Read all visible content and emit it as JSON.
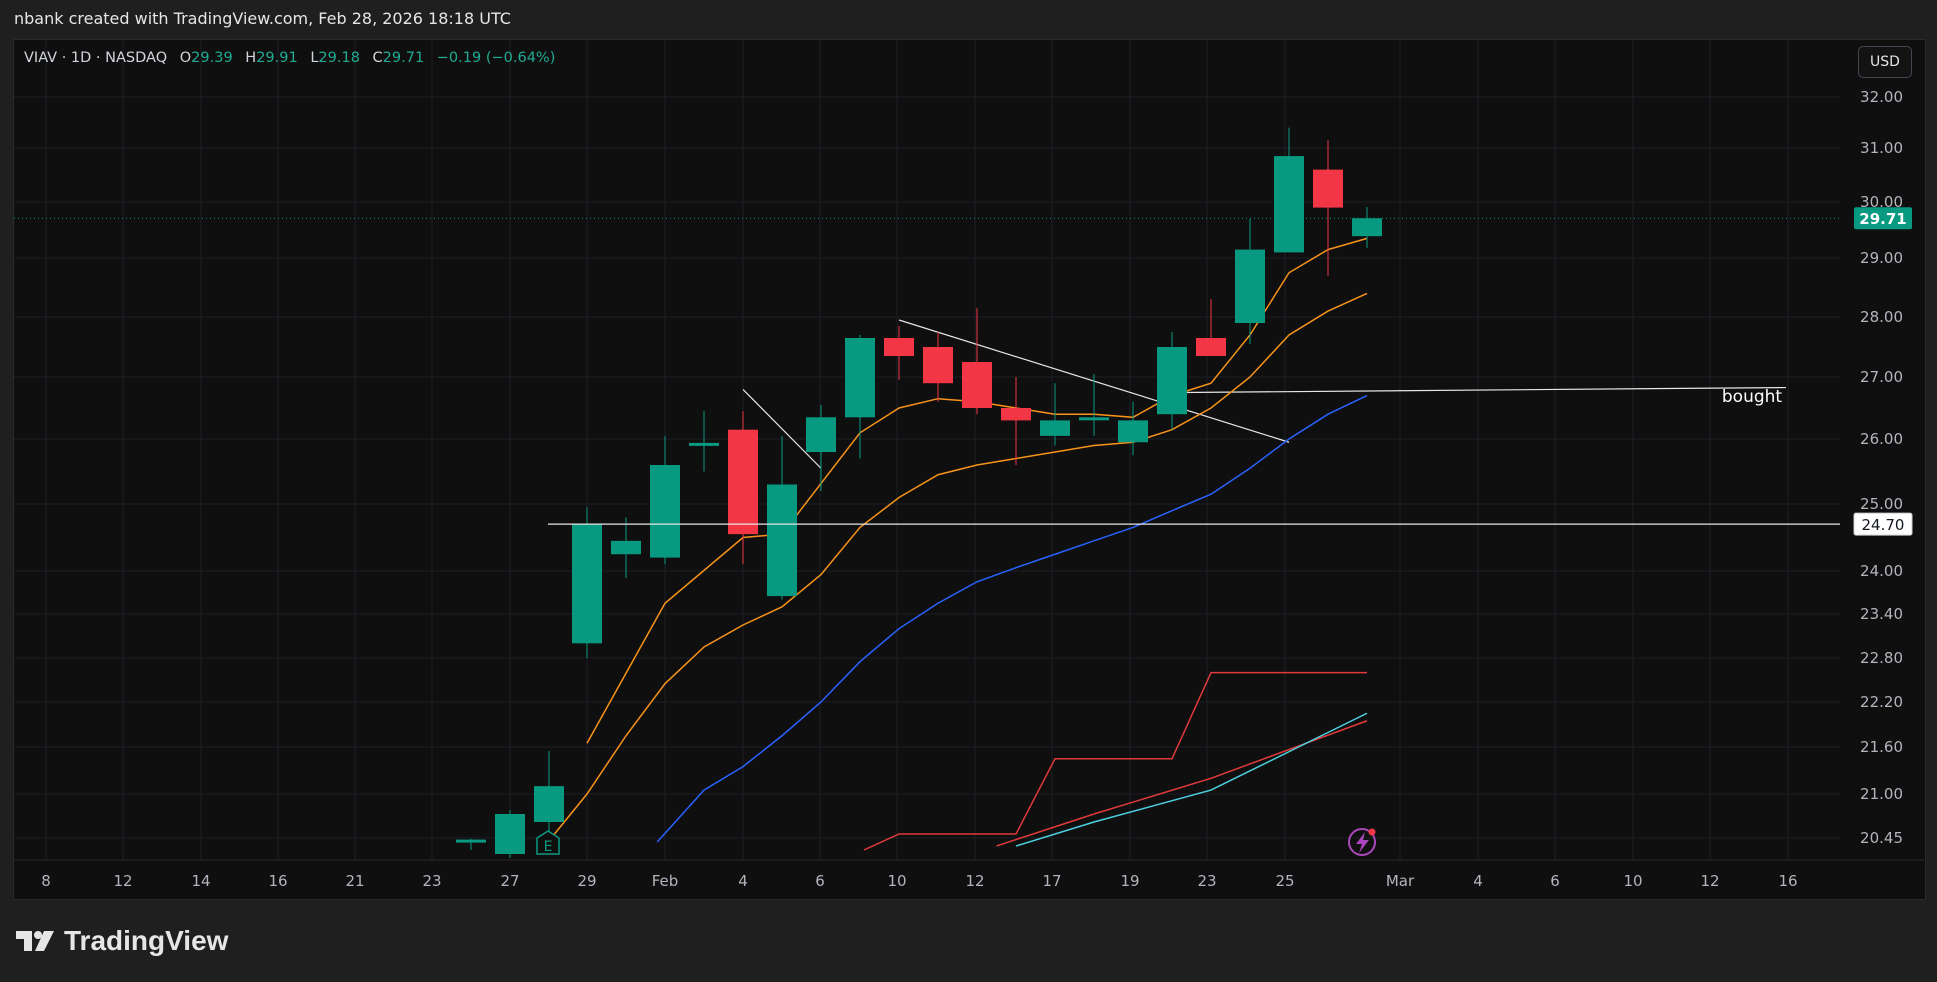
{
  "header": {
    "caption": "nbank created with TradingView.com, Feb 28, 2026 18:18 UTC"
  },
  "symbol": {
    "name": "VIAV · 1D · NASDAQ",
    "o_label": "O",
    "o_value": "29.39",
    "h_label": "H",
    "h_value": "29.91",
    "l_label": "L",
    "l_value": "29.18",
    "c_label": "C",
    "c_value": "29.71",
    "change": "−0.19 (−0.64%)"
  },
  "currency_button": "USD",
  "footer": {
    "brand": "TradingView"
  },
  "colors": {
    "up": "#089981",
    "down": "#f23645",
    "ema_fast": "#f7931a",
    "ema_blue": "#2962ff",
    "red_line": "#e03a3a",
    "cyan_line": "#4dd0e1",
    "white_line": "#e0e0e0"
  },
  "chart_data": {
    "type": "candlestick",
    "y_axis_ticks": [
      "32.00",
      "31.00",
      "30.00",
      "29.00",
      "28.00",
      "27.00",
      "26.00",
      "25.00",
      "24.00",
      "23.40",
      "22.80",
      "22.20",
      "21.60",
      "21.00",
      "20.45"
    ],
    "x_axis_ticks": [
      "8",
      "12",
      "14",
      "16",
      "21",
      "23",
      "27",
      "29",
      "Feb",
      "4",
      "6",
      "10",
      "12",
      "17",
      "19",
      "23",
      "25",
      "Mar",
      "4",
      "6",
      "10",
      "12",
      "16"
    ],
    "last_price": "29.71",
    "marked_level": "24.70",
    "annotation": "bought",
    "earnings_marker": "E",
    "candles": [
      {
        "date": "Jan 26",
        "o": 20.4,
        "h": 20.44,
        "l": 20.3,
        "c": 20.43
      },
      {
        "date": "Jan 27",
        "o": 20.25,
        "h": 20.8,
        "l": 20.2,
        "c": 20.75
      },
      {
        "date": "Jan 28",
        "o": 20.65,
        "h": 21.55,
        "l": 20.4,
        "c": 21.1
      },
      {
        "date": "Jan 29",
        "o": 23.0,
        "h": 24.95,
        "l": 22.8,
        "c": 24.7
      },
      {
        "date": "Jan 30",
        "o": 24.25,
        "h": 24.8,
        "l": 23.9,
        "c": 24.45
      },
      {
        "date": "Feb 2",
        "o": 24.2,
        "h": 26.05,
        "l": 24.1,
        "c": 25.6
      },
      {
        "date": "Feb 3",
        "o": 25.9,
        "h": 26.45,
        "l": 25.5,
        "c": 25.94
      },
      {
        "date": "Feb 4",
        "o": 26.15,
        "h": 26.45,
        "l": 24.1,
        "c": 24.55
      },
      {
        "date": "Feb 5",
        "o": 23.65,
        "h": 26.05,
        "l": 23.6,
        "c": 25.3
      },
      {
        "date": "Feb 6",
        "o": 25.8,
        "h": 26.55,
        "l": 25.2,
        "c": 26.35
      },
      {
        "date": "Feb 9",
        "o": 26.35,
        "h": 27.7,
        "l": 25.7,
        "c": 27.65
      },
      {
        "date": "Feb 10",
        "o": 27.65,
        "h": 27.85,
        "l": 26.95,
        "c": 27.35
      },
      {
        "date": "Feb 11",
        "o": 27.5,
        "h": 27.75,
        "l": 26.6,
        "c": 26.9
      },
      {
        "date": "Feb 12",
        "o": 27.25,
        "h": 28.15,
        "l": 26.4,
        "c": 26.5
      },
      {
        "date": "Feb 13",
        "o": 26.5,
        "h": 27.0,
        "l": 25.6,
        "c": 26.3
      },
      {
        "date": "Feb 17",
        "o": 26.05,
        "h": 26.9,
        "l": 25.9,
        "c": 26.3
      },
      {
        "date": "Feb 18",
        "o": 26.35,
        "h": 27.05,
        "l": 26.05,
        "c": 26.35
      },
      {
        "date": "Feb 19",
        "o": 25.95,
        "h": 26.6,
        "l": 25.75,
        "c": 26.3
      },
      {
        "date": "Feb 20",
        "o": 26.4,
        "h": 27.75,
        "l": 26.15,
        "c": 27.5
      },
      {
        "date": "Feb 23",
        "o": 27.65,
        "h": 28.3,
        "l": 27.35,
        "c": 27.35
      },
      {
        "date": "Feb 24",
        "o": 27.9,
        "h": 29.7,
        "l": 27.55,
        "c": 29.15
      },
      {
        "date": "Feb 25",
        "o": 29.1,
        "h": 31.4,
        "l": 29.1,
        "c": 30.85
      },
      {
        "date": "Feb 26",
        "o": 30.6,
        "h": 31.15,
        "l": 28.7,
        "c": 29.9
      },
      {
        "date": "Feb 27",
        "o": 29.39,
        "h": 29.91,
        "l": 29.18,
        "c": 29.71
      }
    ],
    "indicators": [
      {
        "name": "ema_fast",
        "points": [
          [
            3,
            21.65
          ],
          [
            5,
            23.55
          ],
          [
            7,
            24.5
          ],
          [
            8,
            24.55
          ],
          [
            10,
            26.1
          ],
          [
            11,
            26.5
          ],
          [
            12,
            26.65
          ],
          [
            13,
            26.6
          ],
          [
            14,
            26.5
          ],
          [
            15,
            26.4
          ],
          [
            16,
            26.4
          ],
          [
            17,
            26.35
          ],
          [
            18,
            26.7
          ],
          [
            19,
            26.9
          ],
          [
            20,
            27.7
          ],
          [
            21,
            28.75
          ],
          [
            22,
            29.15
          ],
          [
            23,
            29.35
          ]
        ]
      },
      {
        "name": "ema_slow",
        "points": [
          [
            2,
            20.4
          ],
          [
            3,
            21.0
          ],
          [
            4,
            21.75
          ],
          [
            5,
            22.45
          ],
          [
            6,
            22.95
          ],
          [
            7,
            23.25
          ],
          [
            8,
            23.5
          ],
          [
            9,
            23.95
          ],
          [
            10,
            24.65
          ],
          [
            11,
            25.1
          ],
          [
            12,
            25.45
          ],
          [
            13,
            25.6
          ],
          [
            14,
            25.7
          ],
          [
            15,
            25.8
          ],
          [
            16,
            25.9
          ],
          [
            17,
            25.95
          ],
          [
            18,
            26.15
          ],
          [
            19,
            26.5
          ],
          [
            20,
            27.0
          ],
          [
            21,
            27.7
          ],
          [
            22,
            28.1
          ],
          [
            23,
            28.4
          ]
        ]
      },
      {
        "name": "ema_blue",
        "points": [
          [
            4.8,
            20.4
          ],
          [
            6,
            21.05
          ],
          [
            7,
            21.35
          ],
          [
            8,
            21.75
          ],
          [
            9,
            22.2
          ],
          [
            10,
            22.75
          ],
          [
            11,
            23.2
          ],
          [
            12,
            23.55
          ],
          [
            13,
            23.85
          ],
          [
            14,
            24.05
          ],
          [
            15,
            24.25
          ],
          [
            16,
            24.45
          ],
          [
            17,
            24.65
          ],
          [
            18,
            24.9
          ],
          [
            19,
            25.15
          ],
          [
            20,
            25.55
          ],
          [
            21,
            26.0
          ],
          [
            22,
            26.4
          ],
          [
            23,
            26.7
          ]
        ]
      },
      {
        "name": "red_line",
        "points": [
          [
            10.1,
            20.3
          ],
          [
            11,
            20.5
          ],
          [
            14,
            20.5
          ],
          [
            15,
            21.45
          ],
          [
            18,
            21.45
          ],
          [
            19,
            22.6
          ],
          [
            23,
            22.6
          ]
        ]
      },
      {
        "name": "red_trend",
        "points": [
          [
            13.5,
            20.35
          ],
          [
            16,
            20.75
          ],
          [
            19,
            21.2
          ],
          [
            23,
            21.95
          ]
        ]
      },
      {
        "name": "cyan_line",
        "points": [
          [
            14,
            20.35
          ],
          [
            16,
            20.65
          ],
          [
            19,
            21.05
          ],
          [
            23,
            22.05
          ]
        ]
      }
    ]
  }
}
